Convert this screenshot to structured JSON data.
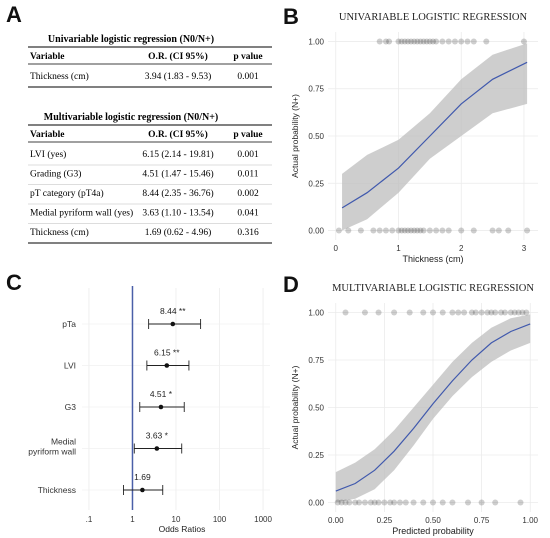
{
  "panels": {
    "a": "A",
    "b": "B",
    "c": "C",
    "d": "D"
  },
  "table_uni": {
    "title": "Univariable logistic regression (N0/N+)",
    "headers": [
      "Variable",
      "O.R. (CI 95%)",
      "p value"
    ],
    "rows": [
      [
        "Thickness (cm)",
        "3.94 (1.83 - 9.53)",
        "0.001"
      ]
    ]
  },
  "table_multi": {
    "title": "Multivariable logistic regression (N0/N+)",
    "headers": [
      "Variable",
      "O.R. (CI 95%)",
      "p value"
    ],
    "rows": [
      [
        "LVI (yes)",
        "6.15 (2.14 - 19.81)",
        "0.001"
      ],
      [
        "Grading (G3)",
        "4.51 (1.47 - 15.46)",
        "0.011"
      ],
      [
        "pT category (pT4a)",
        "8.44 (2.35 - 36.76)",
        "0.002"
      ],
      [
        "Medial pyriform wall (yes)",
        "3.63 (1.10 - 13.54)",
        "0.041"
      ],
      [
        "Thickness (cm)",
        "1.69 (0.62 - 4.96)",
        "0.316"
      ]
    ]
  },
  "chart_data": [
    {
      "id": "B",
      "type": "line",
      "title": "UNIVARIABLE LOGISTIC REGRESSION",
      "xlabel": "Thickness (cm)",
      "ylabel": "Actual probability (N+)",
      "xlim": [
        0,
        3.1
      ],
      "ylim": [
        0,
        1
      ],
      "x_ticks": [
        "0",
        "1",
        "2",
        "3"
      ],
      "y_ticks": [
        "0.00",
        "0.25",
        "0.50",
        "0.75",
        "1.00"
      ],
      "curve": {
        "x": [
          0.1,
          0.5,
          1.0,
          1.5,
          2.0,
          2.5,
          3.05
        ],
        "y": [
          0.12,
          0.2,
          0.33,
          0.5,
          0.67,
          0.8,
          0.89
        ]
      },
      "band": {
        "x": [
          0.1,
          0.5,
          1.0,
          1.5,
          2.0,
          2.5,
          3.05
        ],
        "low": [
          0.0,
          0.06,
          0.2,
          0.38,
          0.5,
          0.62,
          0.67
        ],
        "high": [
          0.3,
          0.4,
          0.48,
          0.62,
          0.8,
          0.93,
          0.99
        ]
      },
      "points_y1": [
        0.7,
        0.8,
        0.85,
        1.0,
        1.05,
        1.1,
        1.15,
        1.2,
        1.25,
        1.3,
        1.35,
        1.4,
        1.45,
        1.5,
        1.55,
        1.6,
        1.7,
        1.8,
        1.9,
        2.0,
        2.1,
        2.2,
        2.4,
        3.0
      ],
      "points_y0": [
        0.05,
        0.2,
        0.4,
        0.6,
        0.7,
        0.8,
        0.9,
        1.0,
        1.05,
        1.1,
        1.15,
        1.2,
        1.25,
        1.3,
        1.35,
        1.4,
        1.5,
        1.6,
        1.7,
        1.8,
        2.0,
        2.2,
        2.5,
        2.6,
        2.75,
        3.05
      ]
    },
    {
      "id": "C",
      "type": "scatter",
      "xlabel": "Odds Ratios",
      "x_scale": "log",
      "x_ticks": [
        ".1",
        "1",
        "10",
        "100",
        "1000"
      ],
      "reference_x": 1,
      "series": [
        {
          "label": "pTa",
          "or": 8.44,
          "low": 2.35,
          "high": 36.76,
          "annot": "8.44 **"
        },
        {
          "label": "LVI",
          "or": 6.15,
          "low": 2.14,
          "high": 19.81,
          "annot": "6.15 **"
        },
        {
          "label": "G3",
          "or": 4.51,
          "low": 1.47,
          "high": 15.46,
          "annot": "4.51 *"
        },
        {
          "label": [
            "Medial",
            "pyriform wall"
          ],
          "or": 3.63,
          "low": 1.1,
          "high": 13.54,
          "annot": "3.63 *"
        },
        {
          "label": "Thickness",
          "or": 1.69,
          "low": 0.62,
          "high": 4.96,
          "annot": "1.69"
        }
      ]
    },
    {
      "id": "D",
      "type": "line",
      "title": "MULTIVARIABLE LOGISTIC REGRESSION",
      "xlabel": "Predicted probability",
      "ylabel": "Actual probability (N+)",
      "xlim": [
        0,
        1
      ],
      "ylim": [
        0,
        1
      ],
      "x_ticks": [
        "0.00",
        "0.25",
        "0.50",
        "0.75",
        "1.00"
      ],
      "y_ticks": [
        "0.00",
        "0.25",
        "0.50",
        "0.75",
        "1.00"
      ],
      "curve": {
        "x": [
          0.0,
          0.1,
          0.2,
          0.3,
          0.4,
          0.5,
          0.6,
          0.7,
          0.8,
          0.9,
          1.0
        ],
        "y": [
          0.06,
          0.1,
          0.17,
          0.27,
          0.39,
          0.52,
          0.64,
          0.75,
          0.84,
          0.9,
          0.94
        ]
      },
      "band": {
        "x": [
          0.0,
          0.1,
          0.2,
          0.3,
          0.4,
          0.5,
          0.6,
          0.7,
          0.8,
          0.9,
          1.0
        ],
        "low": [
          0.0,
          0.02,
          0.07,
          0.17,
          0.3,
          0.44,
          0.56,
          0.66,
          0.74,
          0.8,
          0.84
        ],
        "high": [
          0.16,
          0.21,
          0.28,
          0.38,
          0.5,
          0.62,
          0.74,
          0.84,
          0.92,
          0.97,
          0.99
        ]
      },
      "points_y1": [
        0.05,
        0.15,
        0.22,
        0.3,
        0.38,
        0.45,
        0.5,
        0.55,
        0.6,
        0.63,
        0.66,
        0.7,
        0.72,
        0.75,
        0.78,
        0.8,
        0.82,
        0.85,
        0.87,
        0.9,
        0.92,
        0.94,
        0.96,
        0.98
      ],
      "points_y0": [
        0.01,
        0.03,
        0.05,
        0.07,
        0.1,
        0.12,
        0.15,
        0.18,
        0.2,
        0.22,
        0.25,
        0.28,
        0.3,
        0.33,
        0.36,
        0.4,
        0.45,
        0.5,
        0.55,
        0.6,
        0.68,
        0.75,
        0.82,
        0.95
      ]
    }
  ]
}
